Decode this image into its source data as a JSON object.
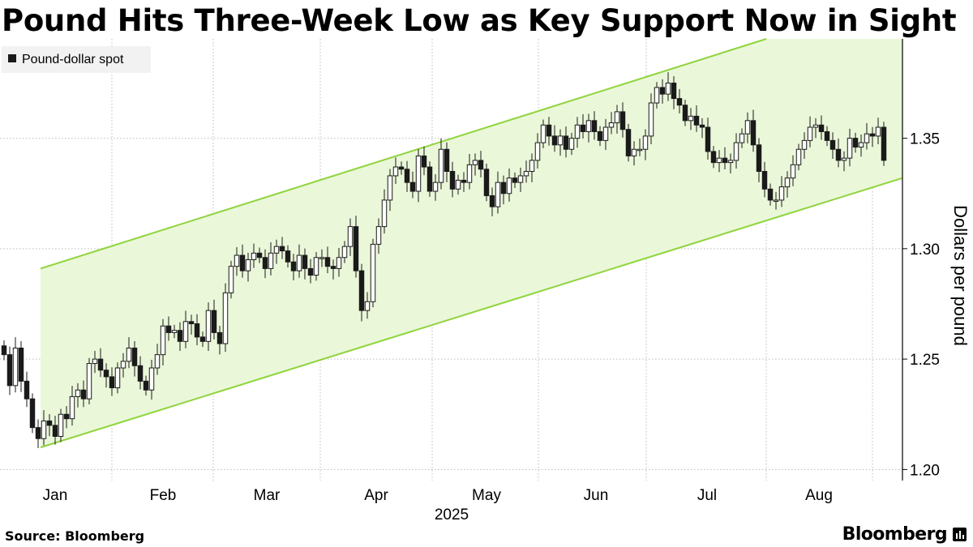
{
  "title": "Pound Hits Three-Week Low as Key Support Now in Sight",
  "source": "Source: Bloomberg",
  "brand": "Bloomberg",
  "chart_data": {
    "type": "candlestick",
    "legend": [
      {
        "name": "Pound-dollar spot",
        "color": "#1a1a1a"
      }
    ],
    "legend_position": "top-left",
    "ylabel": "Dollars per pound",
    "xlabel": "2025",
    "y_ticks": [
      "1.20",
      "1.25",
      "1.30",
      "1.35"
    ],
    "x_ticks": [
      "Jan",
      "Feb",
      "Mar",
      "Apr",
      "May",
      "Jun",
      "Jul",
      "Aug"
    ],
    "ylim": [
      1.195,
      1.395
    ],
    "grid": true,
    "channel": {
      "fill": "#eaf7d9",
      "stroke": "#8fd43c",
      "upper": {
        "start": 1.291,
        "end": 1.395
      },
      "lower": {
        "start": 1.21,
        "end": 1.332
      }
    },
    "colors": {
      "up": "#ffffff",
      "down": "#1a1a1a",
      "outline": "#1a1a1a",
      "grid": "#bbbbbb"
    },
    "closes": [
      1.252,
      1.238,
      1.255,
      1.24,
      1.232,
      1.219,
      1.214,
      1.222,
      1.22,
      1.215,
      1.225,
      1.223,
      1.233,
      1.236,
      1.232,
      1.248,
      1.25,
      1.245,
      1.242,
      1.237,
      1.246,
      1.249,
      1.255,
      1.247,
      1.24,
      1.236,
      1.246,
      1.252,
      1.265,
      1.262,
      1.263,
      1.258,
      1.267,
      1.266,
      1.26,
      1.258,
      1.272,
      1.262,
      1.257,
      1.28,
      1.292,
      1.297,
      1.29,
      1.295,
      1.298,
      1.296,
      1.291,
      1.298,
      1.301,
      1.299,
      1.294,
      1.29,
      1.297,
      1.291,
      1.288,
      1.296,
      1.296,
      1.292,
      1.291,
      1.296,
      1.301,
      1.31,
      1.29,
      1.272,
      1.276,
      1.302,
      1.31,
      1.322,
      1.333,
      1.337,
      1.336,
      1.33,
      1.326,
      1.342,
      1.337,
      1.326,
      1.33,
      1.345,
      1.335,
      1.327,
      1.331,
      1.33,
      1.338,
      1.34,
      1.336,
      1.324,
      1.319,
      1.33,
      1.325,
      1.332,
      1.33,
      1.333,
      1.335,
      1.34,
      1.348,
      1.356,
      1.351,
      1.347,
      1.351,
      1.345,
      1.35,
      1.356,
      1.353,
      1.358,
      1.353,
      1.349,
      1.355,
      1.357,
      1.362,
      1.354,
      1.342,
      1.345,
      1.345,
      1.351,
      1.366,
      1.373,
      1.37,
      1.375,
      1.368,
      1.365,
      1.358,
      1.36,
      1.356,
      1.355,
      1.344,
      1.339,
      1.341,
      1.339,
      1.34,
      1.348,
      1.352,
      1.358,
      1.347,
      1.335,
      1.327,
      1.322,
      1.322,
      1.328,
      1.332,
      1.338,
      1.345,
      1.349,
      1.355,
      1.356,
      1.353,
      1.349,
      1.345,
      1.34,
      1.341,
      1.35,
      1.346,
      1.348,
      1.352,
      1.351,
      1.355,
      1.34
    ]
  }
}
